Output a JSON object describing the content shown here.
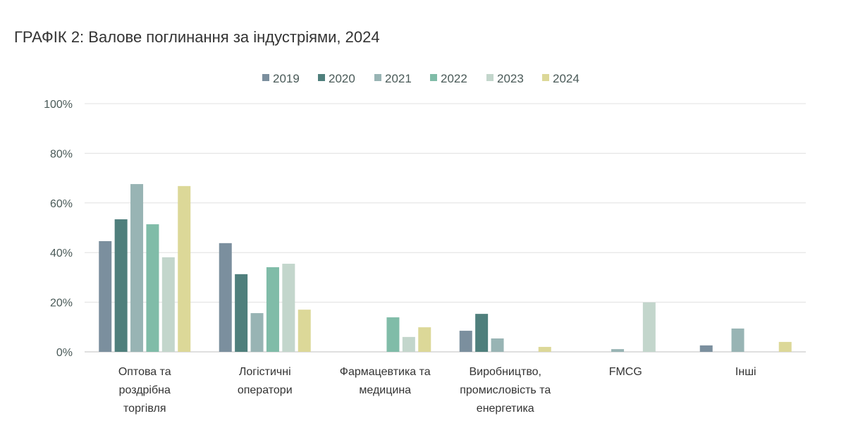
{
  "chart_data": {
    "type": "bar",
    "title": "ГРАФІК 2: Валове поглинання за індустріями, 2024",
    "xlabel": "",
    "ylabel": "",
    "ylim": [
      0,
      100
    ],
    "yticks": [
      "0%",
      "20%",
      "40%",
      "60%",
      "80%",
      "100%"
    ],
    "grid": true,
    "legend_position": "top-center",
    "categories": [
      [
        "Оптова та",
        "роздрібна",
        "торгівля"
      ],
      [
        "Логістичні",
        "оператори"
      ],
      [
        "Фармацевтика та",
        "медицина"
      ],
      [
        "Виробництво,",
        "промисловість та",
        "енергетика"
      ],
      [
        "FMCG"
      ],
      [
        "Інші"
      ]
    ],
    "series": [
      {
        "name": "2019",
        "color": "#7b8f9e",
        "values": [
          44.6,
          43.8,
          0,
          8.5,
          0,
          2.6
        ]
      },
      {
        "name": "2020",
        "color": "#4f7f7c",
        "values": [
          53.4,
          31.3,
          0,
          15.3,
          0,
          0
        ]
      },
      {
        "name": "2021",
        "color": "#98b4b4",
        "values": [
          67.6,
          15.6,
          0,
          5.4,
          1.1,
          9.4
        ]
      },
      {
        "name": "2022",
        "color": "#80bca8",
        "values": [
          51.4,
          34.1,
          13.9,
          0,
          0,
          0
        ]
      },
      {
        "name": "2023",
        "color": "#c3d6cc",
        "values": [
          38.1,
          35.5,
          6.0,
          0,
          19.9,
          0
        ]
      },
      {
        "name": "2024",
        "color": "#dcd898",
        "values": [
          66.8,
          17.0,
          9.9,
          2.0,
          0,
          4.0
        ]
      }
    ]
  }
}
